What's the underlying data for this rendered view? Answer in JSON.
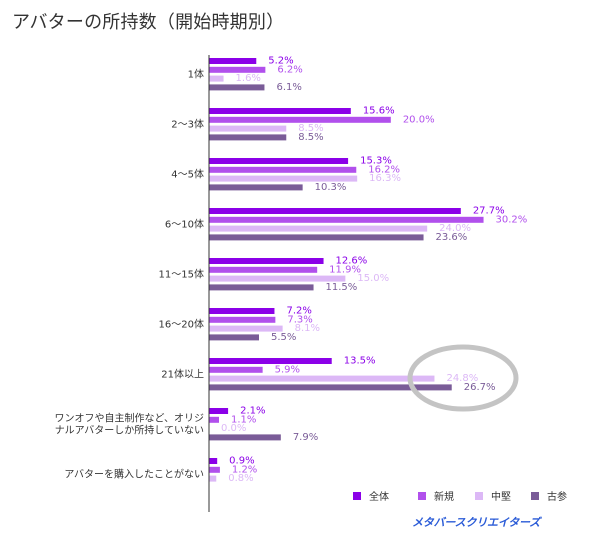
{
  "chart_data": {
    "type": "bar",
    "orientation": "horizontal",
    "title": "アバターの所持数（開始時期別）",
    "categories": [
      "1体",
      "2〜3体",
      "4〜5体",
      "6〜10体",
      "11〜15体",
      "16〜20体",
      "21体以上",
      [
        "ワンオフや自主制作など、オリジ",
        "ナルアバターしか所持していない"
      ],
      "アバターを購入したことがない"
    ],
    "series": [
      {
        "name": "全体",
        "color": "#8b00e8",
        "values": [
          5.2,
          15.6,
          15.3,
          27.7,
          12.6,
          7.2,
          13.5,
          2.1,
          0.9
        ],
        "value_labels": [
          "5.2%",
          "15.6%",
          "15.3%",
          "27.7%",
          "12.6%",
          "7.2%",
          "13.5%",
          "2.1%",
          "0.9%"
        ]
      },
      {
        "name": "新規",
        "color": "#b150ec",
        "values": [
          6.2,
          20.0,
          16.2,
          30.2,
          11.9,
          7.3,
          5.9,
          1.1,
          1.2
        ],
        "value_labels": [
          "6.2%",
          "20.0%",
          "16.2%",
          "30.2%",
          "11.9%",
          "7.3%",
          "5.9%",
          "1.1%",
          "1.2%"
        ]
      },
      {
        "name": "中堅",
        "color": "#dcb8f6",
        "values": [
          1.6,
          8.5,
          16.3,
          24.0,
          15.0,
          8.1,
          24.8,
          0.0,
          0.8
        ],
        "value_labels": [
          "1.6%",
          "8.5%",
          "16.3%",
          "24.0%",
          "15.0%",
          "8.1%",
          "24.8%",
          "0.0%",
          "0.8%"
        ]
      },
      {
        "name": "古参",
        "color": "#7a5c98",
        "values": [
          6.1,
          8.5,
          10.3,
          23.6,
          11.5,
          5.5,
          26.7,
          7.9,
          0.0
        ],
        "value_labels": [
          "6.1%",
          "8.5%",
          "10.3%",
          "23.6%",
          "11.5%",
          "5.5%",
          "26.7%",
          "7.9%",
          ""
        ]
      }
    ],
    "xlim": [
      0,
      33
    ],
    "grid": false,
    "legend_position": "bottom-right",
    "highlight": {
      "category_index": 6,
      "shape": "ellipse",
      "color": "#c4c4c4"
    }
  },
  "logo": {
    "text": "メタバースクリエイターズ",
    "color": "#2a5bd7"
  }
}
